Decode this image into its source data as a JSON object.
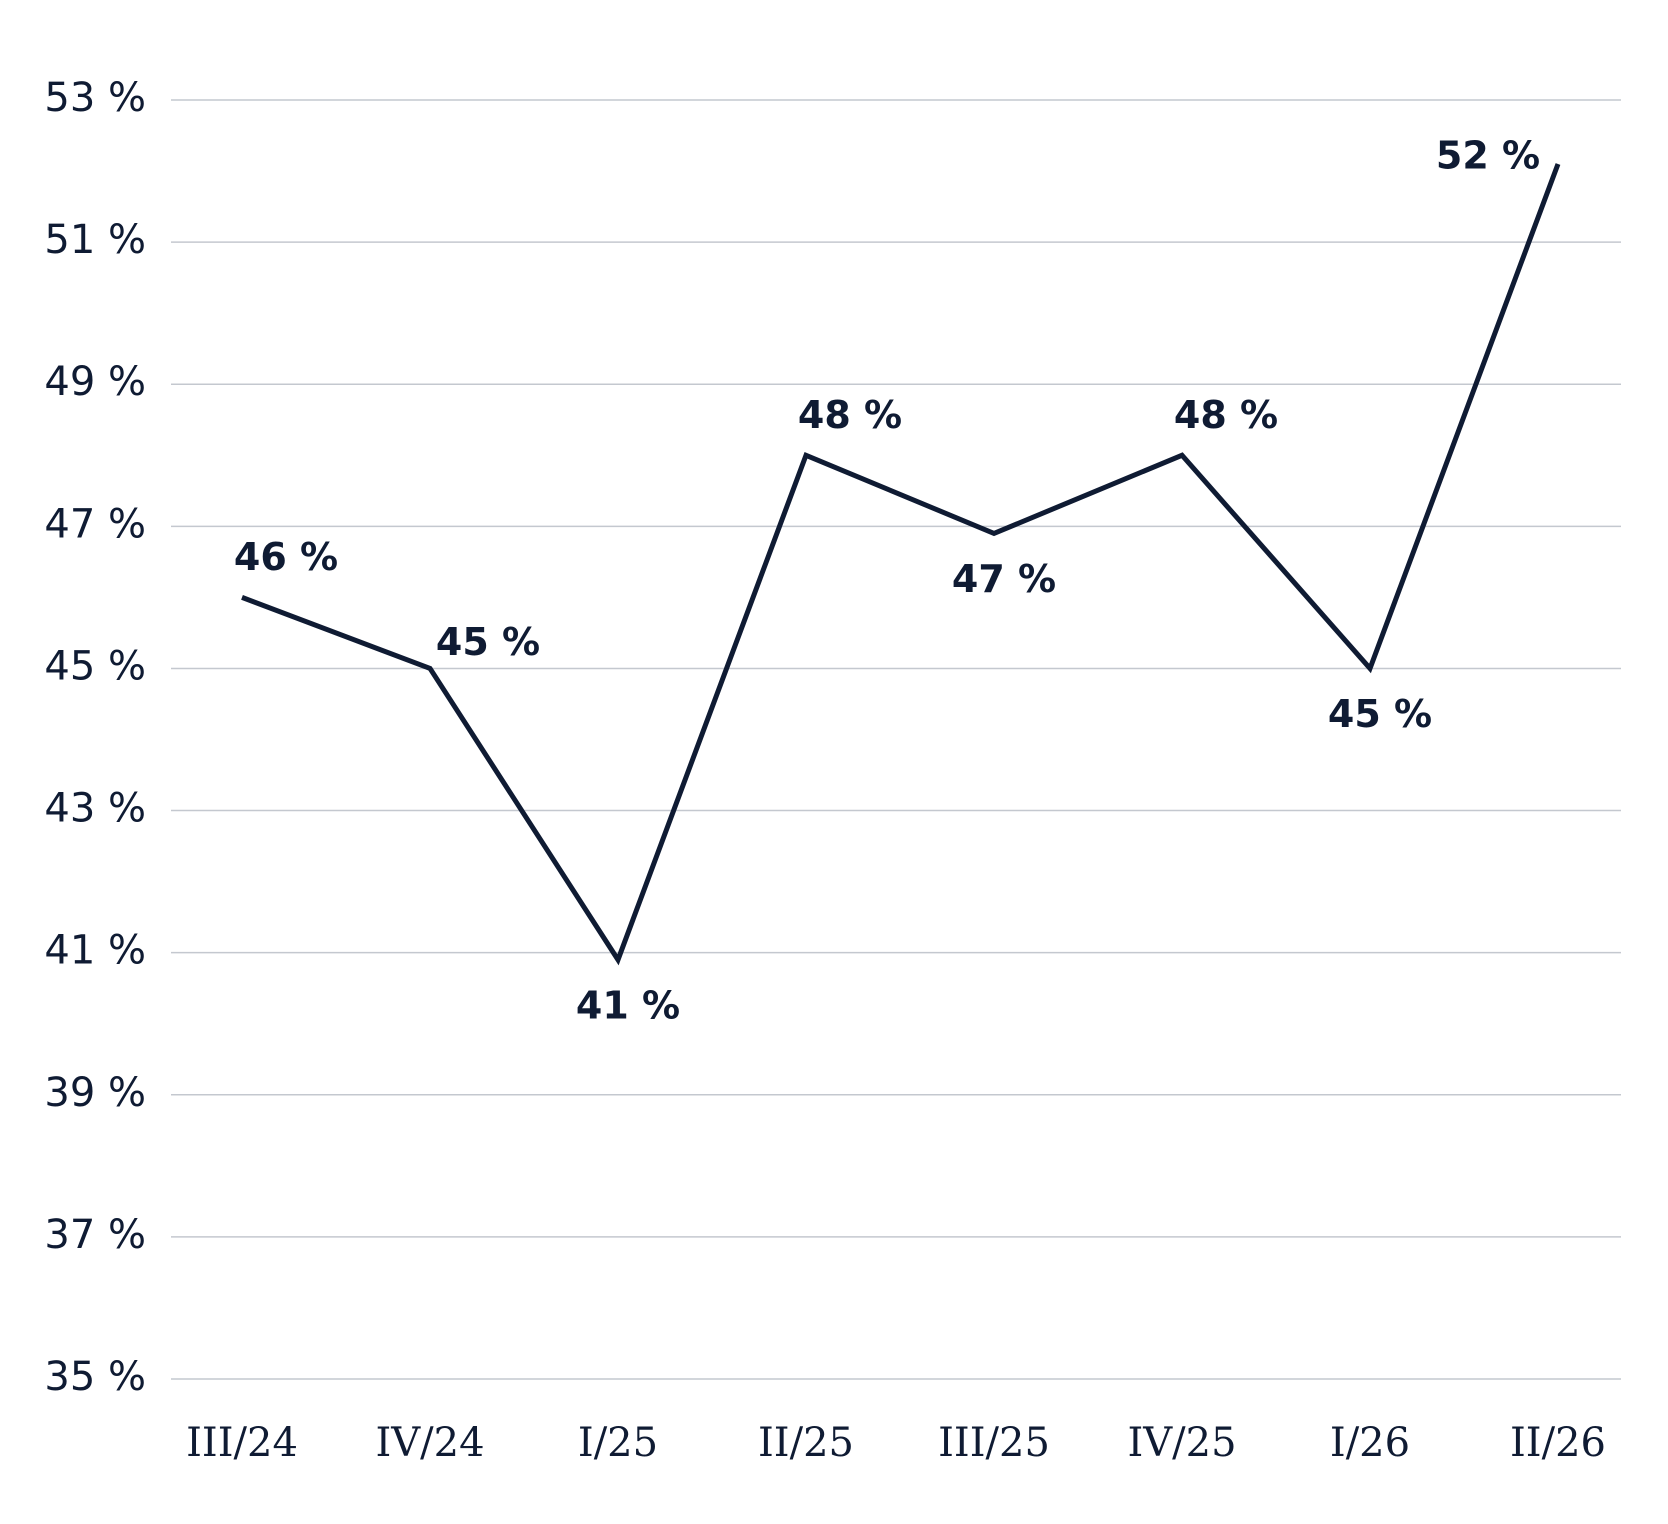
{
  "chart_data": {
    "type": "line",
    "categories": [
      "III/24",
      "IV/24",
      "I/25",
      "II/25",
      "III/25",
      "IV/25",
      "I/26",
      "II/26"
    ],
    "series": [
      {
        "color": "#0f1b33",
        "values": [
          46.0,
          45.0,
          40.9,
          48.0,
          46.9,
          48.0,
          45.0,
          52.1
        ],
        "value_labels": [
          "46 %",
          "45 %",
          "41 %",
          "48 %",
          "47 %",
          "48 %",
          "45 %",
          "52 %"
        ]
      }
    ],
    "ylim": [
      35,
      53
    ],
    "yticks": [
      {
        "value": 35,
        "label": "35 %"
      },
      {
        "value": 37,
        "label": "37 %"
      },
      {
        "value": 39,
        "label": "39 %"
      },
      {
        "value": 41,
        "label": "41 %"
      },
      {
        "value": 43,
        "label": "43 %"
      },
      {
        "value": 45,
        "label": "45 %"
      },
      {
        "value": 47,
        "label": "47 %"
      },
      {
        "value": 49,
        "label": "49 %"
      },
      {
        "value": 51,
        "label": "51 %"
      },
      {
        "value": 53,
        "label": "53 %"
      }
    ],
    "grid": true
  }
}
